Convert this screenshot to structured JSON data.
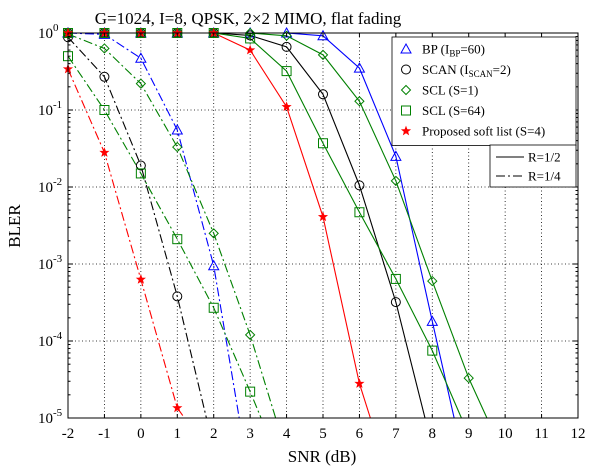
{
  "chart_data": {
    "type": "line",
    "title": "G=1024, I=8, QPSK, 2×2 MIMO, flat fading",
    "xlabel": "SNR (dB)",
    "ylabel": "BLER",
    "xlim": [
      -2,
      12
    ],
    "ylim": [
      1e-05,
      1
    ],
    "yscale": "log",
    "grid": true,
    "x_ticks": [
      -2,
      -1,
      0,
      1,
      2,
      3,
      4,
      5,
      6,
      7,
      8,
      9,
      10,
      11,
      12
    ],
    "x_tick_labels": [
      "-2",
      "-1",
      "0",
      "1",
      "2",
      "3",
      "4",
      "5",
      "6",
      "7",
      "8",
      "9",
      "10",
      "11",
      "12"
    ],
    "y_ticks": [
      1,
      0.1,
      0.01,
      0.001,
      0.0001,
      1e-05
    ],
    "y_tick_labels": [
      {
        "base": "10",
        "exp": "0"
      },
      {
        "base": "10",
        "exp": "-1"
      },
      {
        "base": "10",
        "exp": "-2"
      },
      {
        "base": "10",
        "exp": "-3"
      },
      {
        "base": "10",
        "exp": "-4"
      },
      {
        "base": "10",
        "exp": "-5"
      }
    ],
    "legend": {
      "placement": "top-right",
      "entries": [
        {
          "marker": "triangle",
          "color": "#0000ff",
          "parts": [
            {
              "t": "BP (I"
            },
            {
              "t": "BP",
              "sub": true
            },
            {
              "t": "=60)"
            }
          ]
        },
        {
          "marker": "circle",
          "color": "#000000",
          "parts": [
            {
              "t": "SCAN (I"
            },
            {
              "t": "SCAN",
              "sub": true
            },
            {
              "t": "=2)"
            }
          ]
        },
        {
          "marker": "diamond",
          "color": "#008000",
          "parts": [
            {
              "t": "SCL (S=1)"
            }
          ]
        },
        {
          "marker": "square",
          "color": "#008000",
          "parts": [
            {
              "t": "SCL (S=64)"
            }
          ]
        },
        {
          "marker": "star",
          "color": "#ff0000",
          "parts": [
            {
              "t": "Proposed soft list (S=4)"
            }
          ]
        }
      ]
    },
    "rate_legend": {
      "placement": "right",
      "entries": [
        {
          "dash": "solid",
          "label": "R=1/2"
        },
        {
          "dash": "dashdot",
          "label": "R=1/4"
        }
      ]
    },
    "series": [
      {
        "code": "bp_half",
        "marker": "triangle",
        "color": "#0000ff",
        "dash": "solid",
        "x": [
          -2,
          -1,
          0,
          1,
          2,
          3,
          4,
          5,
          6,
          7,
          8,
          8.6
        ],
        "y": [
          1,
          1,
          1,
          1,
          1,
          1,
          1,
          0.92,
          0.35,
          0.025,
          0.00018,
          1e-05
        ]
      },
      {
        "code": "bp_quarter",
        "marker": "triangle",
        "color": "#0000ff",
        "dash": "dashdot",
        "x": [
          -2,
          -1,
          0,
          1,
          2,
          2.7
        ],
        "y": [
          1,
          0.96,
          0.47,
          0.055,
          0.00095,
          1e-05
        ]
      },
      {
        "code": "scan_half",
        "marker": "circle",
        "color": "#000000",
        "dash": "solid",
        "x": [
          -2,
          -1,
          0,
          1,
          2,
          3,
          4,
          5,
          6,
          7,
          7.8
        ],
        "y": [
          1,
          1,
          1,
          1,
          1,
          0.93,
          0.66,
          0.16,
          0.0105,
          0.00032,
          1e-05
        ]
      },
      {
        "code": "scan_quarter",
        "marker": "circle",
        "color": "#000000",
        "dash": "dashdot",
        "x": [
          -2,
          -1,
          0,
          1,
          1.8
        ],
        "y": [
          0.88,
          0.27,
          0.019,
          0.00038,
          1e-05
        ]
      },
      {
        "code": "scl1_half",
        "marker": "diamond",
        "color": "#008000",
        "dash": "solid",
        "x": [
          -2,
          -1,
          0,
          1,
          2,
          3,
          4,
          5,
          6,
          7,
          8,
          9,
          9.5
        ],
        "y": [
          1,
          1,
          1,
          1,
          1,
          1,
          0.92,
          0.52,
          0.13,
          0.012,
          0.0006,
          3.3e-05,
          1e-05
        ]
      },
      {
        "code": "scl1_quarter",
        "marker": "diamond",
        "color": "#008000",
        "dash": "dashdot",
        "x": [
          -2,
          -1,
          0,
          1,
          2,
          3,
          3.7
        ],
        "y": [
          0.97,
          0.63,
          0.22,
          0.033,
          0.0025,
          0.00012,
          1e-05
        ]
      },
      {
        "code": "scl64_half",
        "marker": "square",
        "color": "#008000",
        "dash": "solid",
        "x": [
          -2,
          -1,
          0,
          1,
          2,
          3,
          4,
          5,
          6,
          7,
          8,
          8.8
        ],
        "y": [
          1,
          1,
          1,
          1,
          1,
          0.85,
          0.32,
          0.037,
          0.0047,
          0.00064,
          7.5e-05,
          1e-05
        ]
      },
      {
        "code": "scl64_quarter",
        "marker": "square",
        "color": "#008000",
        "dash": "dashdot",
        "x": [
          -2,
          -1,
          0,
          1,
          2,
          3,
          3.3
        ],
        "y": [
          0.5,
          0.1,
          0.015,
          0.0021,
          0.00027,
          2.2e-05,
          1e-05
        ]
      },
      {
        "code": "prop_half",
        "marker": "star",
        "color": "#ff0000",
        "dash": "solid",
        "x": [
          -2,
          -1,
          0,
          1,
          2,
          3,
          4,
          5,
          6,
          6.3
        ],
        "y": [
          1,
          1,
          1,
          1,
          1,
          0.6,
          0.11,
          0.0041,
          2.8e-05,
          1e-05
        ]
      },
      {
        "code": "prop_quarter",
        "marker": "star",
        "color": "#ff0000",
        "dash": "dashdot",
        "x": [
          -2,
          -1,
          0,
          1,
          1.2
        ],
        "y": [
          0.34,
          0.028,
          0.00063,
          1.35e-05,
          1e-05
        ]
      }
    ]
  }
}
